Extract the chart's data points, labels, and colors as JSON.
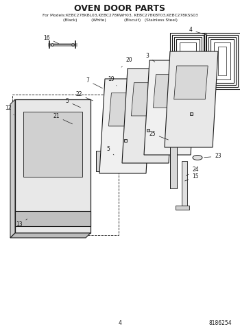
{
  "title": "OVEN DOOR PARTS",
  "subtitle_line1": "For Models:KEBC278KBL03,KEBC278KWH03, KEBC278KBT03,KEBC278KSS03",
  "subtitle_line2": "(Black)           (White)              (Biscuit)   (Stainless Steel)",
  "page_number": "4",
  "part_number": "8186254",
  "bg": "#ffffff",
  "lc": "#1a1a1a",
  "fig_width": 3.5,
  "fig_height": 4.83,
  "dpi": 100
}
